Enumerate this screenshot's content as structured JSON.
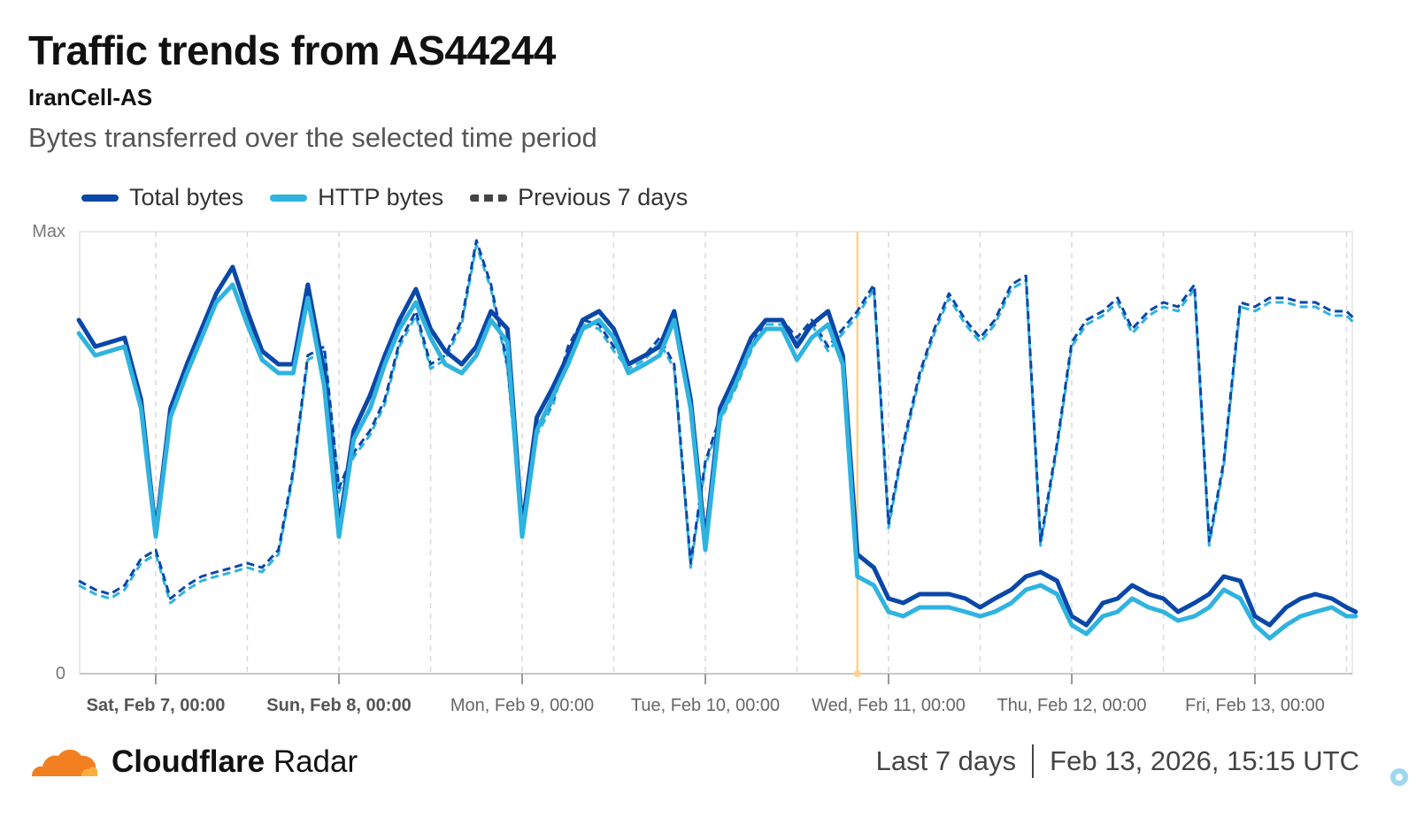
{
  "header": {
    "title": "Traffic trends from AS44244",
    "subtitle": "IranCell-AS",
    "description": "Bytes transferred over the selected time period"
  },
  "legend": {
    "total": "Total bytes",
    "http": "HTTP bytes",
    "previous": "Previous 7 days"
  },
  "footer": {
    "brand_bold": "Cloudflare",
    "brand_light": "Radar",
    "range": "Last 7 days",
    "timestamp": "Feb 13, 2026, 15:15 UTC"
  },
  "colors": {
    "total": "#0a47a8",
    "http": "#2fb3df",
    "cloudflare_orange": "#f38020",
    "marker": "#fbd38d"
  },
  "chart_data": {
    "type": "line",
    "y_tick_labels": [
      "Max",
      "0"
    ],
    "ylim": [
      0,
      100
    ],
    "x_tick_labels": [
      "Sat, Feb 7, 00:00",
      "Sun, Feb 8, 00:00",
      "Mon, Feb 9, 00:00",
      "Tue, Feb 10, 00:00",
      "Wed, Feb 11, 00:00",
      "Thu, Feb 12, 00:00",
      "Fri, Feb 13, 00:00"
    ],
    "x_ticks_day": [
      1,
      2,
      3,
      4,
      5,
      6,
      7
    ],
    "xlim_day": [
      0.58,
      7.55
    ],
    "marker_day": 4.83,
    "grid": "vertical dashed",
    "legend_position": "top-left",
    "series": [
      {
        "name": "Total bytes",
        "x_day": [
          0.58,
          0.67,
          0.75,
          0.83,
          0.92,
          1.0,
          1.08,
          1.17,
          1.25,
          1.33,
          1.42,
          1.5,
          1.58,
          1.67,
          1.75,
          1.83,
          1.92,
          2.0,
          2.08,
          2.17,
          2.25,
          2.33,
          2.42,
          2.5,
          2.58,
          2.67,
          2.75,
          2.83,
          2.92,
          3.0,
          3.08,
          3.17,
          3.25,
          3.33,
          3.42,
          3.5,
          3.58,
          3.67,
          3.75,
          3.83,
          3.92,
          4.0,
          4.08,
          4.17,
          4.25,
          4.33,
          4.42,
          4.5,
          4.58,
          4.67,
          4.75,
          4.83,
          4.92,
          5.0,
          5.08,
          5.17,
          5.25,
          5.33,
          5.42,
          5.5,
          5.58,
          5.67,
          5.75,
          5.83,
          5.92,
          6.0,
          6.08,
          6.17,
          6.25,
          6.33,
          6.42,
          6.5,
          6.58,
          6.67,
          6.75,
          6.83,
          6.92,
          7.0,
          7.08,
          7.17,
          7.25,
          7.33,
          7.42,
          7.5,
          7.55
        ],
        "values": [
          80,
          74,
          75,
          76,
          62,
          32,
          60,
          70,
          78,
          86,
          92,
          82,
          73,
          70,
          70,
          88,
          68,
          33,
          55,
          63,
          72,
          80,
          87,
          78,
          73,
          70,
          74,
          82,
          78,
          33,
          58,
          65,
          72,
          80,
          82,
          78,
          70,
          72,
          74,
          82,
          62,
          30,
          60,
          68,
          76,
          80,
          80,
          74,
          79,
          82,
          72,
          27,
          24,
          17,
          16,
          18,
          18,
          18,
          17,
          15,
          17,
          19,
          22,
          23,
          21,
          13,
          11,
          16,
          17,
          20,
          18,
          17,
          14,
          16,
          18,
          22,
          21,
          13,
          11,
          15,
          17,
          18,
          17,
          15,
          14
        ]
      },
      {
        "name": "HTTP bytes",
        "x_day": [
          0.58,
          0.67,
          0.75,
          0.83,
          0.92,
          1.0,
          1.08,
          1.17,
          1.25,
          1.33,
          1.42,
          1.5,
          1.58,
          1.67,
          1.75,
          1.83,
          1.92,
          2.0,
          2.08,
          2.17,
          2.25,
          2.33,
          2.42,
          2.5,
          2.58,
          2.67,
          2.75,
          2.83,
          2.92,
          3.0,
          3.08,
          3.17,
          3.25,
          3.33,
          3.42,
          3.5,
          3.58,
          3.67,
          3.75,
          3.83,
          3.92,
          4.0,
          4.08,
          4.17,
          4.25,
          4.33,
          4.42,
          4.5,
          4.58,
          4.67,
          4.75,
          4.83,
          4.92,
          5.0,
          5.08,
          5.17,
          5.25,
          5.33,
          5.42,
          5.5,
          5.58,
          5.67,
          5.75,
          5.83,
          5.92,
          6.0,
          6.08,
          6.17,
          6.25,
          6.33,
          6.42,
          6.5,
          6.58,
          6.67,
          6.75,
          6.83,
          6.92,
          7.0,
          7.08,
          7.17,
          7.25,
          7.33,
          7.42,
          7.5,
          7.55
        ],
        "values": [
          77,
          72,
          73,
          74,
          60,
          31,
          58,
          68,
          76,
          84,
          88,
          79,
          71,
          68,
          68,
          85,
          65,
          31,
          53,
          60,
          70,
          78,
          84,
          76,
          70,
          68,
          72,
          80,
          75,
          31,
          55,
          63,
          70,
          78,
          80,
          76,
          68,
          70,
          72,
          80,
          60,
          28,
          58,
          66,
          74,
          78,
          78,
          71,
          76,
          79,
          70,
          22,
          20,
          14,
          13,
          15,
          15,
          15,
          14,
          13,
          14,
          16,
          19,
          20,
          18,
          11,
          9,
          13,
          14,
          17,
          15,
          14,
          12,
          13,
          15,
          19,
          17,
          11,
          8,
          11,
          13,
          14,
          15,
          13,
          13
        ]
      },
      {
        "name": "Previous 7 days",
        "x_day": [
          0.58,
          0.67,
          0.75,
          0.83,
          0.92,
          1.0,
          1.08,
          1.17,
          1.25,
          1.33,
          1.42,
          1.5,
          1.58,
          1.67,
          1.75,
          1.83,
          1.92,
          2.0,
          2.08,
          2.17,
          2.25,
          2.33,
          2.42,
          2.5,
          2.58,
          2.67,
          2.75,
          2.83,
          2.92,
          3.0,
          3.08,
          3.17,
          3.25,
          3.33,
          3.42,
          3.5,
          3.58,
          3.67,
          3.75,
          3.83,
          3.92,
          4.0,
          4.08,
          4.17,
          4.25,
          4.33,
          4.42,
          4.5,
          4.58,
          4.67,
          4.75,
          4.83,
          4.92,
          5.0,
          5.08,
          5.17,
          5.25,
          5.33,
          5.42,
          5.5,
          5.58,
          5.67,
          5.75,
          5.83,
          5.92,
          6.0,
          6.08,
          6.17,
          6.25,
          6.33,
          6.42,
          6.5,
          6.58,
          6.67,
          6.75,
          6.83,
          6.92,
          7.0,
          7.08,
          7.17,
          7.25,
          7.33,
          7.42,
          7.5,
          7.55
        ],
        "values": [
          21,
          19,
          18,
          20,
          26,
          28,
          17,
          20,
          22,
          23,
          24,
          25,
          24,
          28,
          46,
          72,
          74,
          42,
          50,
          55,
          62,
          75,
          82,
          70,
          72,
          80,
          98,
          88,
          70,
          34,
          55,
          62,
          74,
          80,
          79,
          74,
          70,
          72,
          76,
          70,
          25,
          48,
          58,
          66,
          74,
          80,
          80,
          76,
          80,
          74,
          78,
          82,
          88,
          34,
          52,
          68,
          78,
          86,
          80,
          76,
          80,
          88,
          90,
          30,
          52,
          75,
          80,
          82,
          85,
          78,
          82,
          84,
          83,
          88,
          30,
          48,
          84,
          83,
          85,
          85,
          84,
          84,
          82,
          82,
          80
        ]
      }
    ]
  }
}
